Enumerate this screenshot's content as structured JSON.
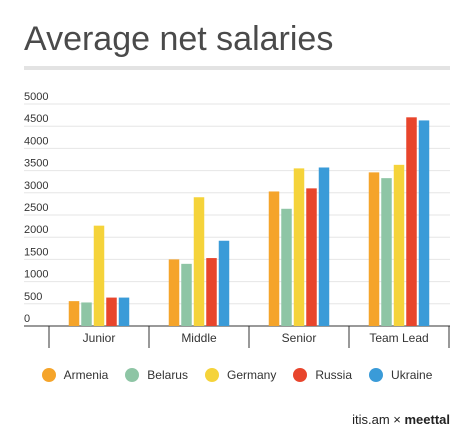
{
  "chart_data": {
    "type": "bar",
    "title": "Average net salaries",
    "categories": [
      "Junior",
      "Middle",
      "Senior",
      "Team Lead"
    ],
    "yticks": [
      "5000",
      "4500",
      "4000",
      "3500",
      "3000",
      "2500",
      "2000",
      "1500",
      "1000",
      "500",
      "0"
    ],
    "ylim": [
      0,
      5000
    ],
    "legend_position": "bottom",
    "series": [
      {
        "name": "Armenia",
        "color": "#f5a42a",
        "values": [
          560,
          1500,
          3030,
          3460
        ]
      },
      {
        "name": "Belarus",
        "color": "#8ec5a5",
        "values": [
          530,
          1400,
          2640,
          3330
        ]
      },
      {
        "name": "Germany",
        "color": "#f5d33a",
        "values": [
          2260,
          2900,
          3550,
          3630
        ]
      },
      {
        "name": "Russia",
        "color": "#e8452c",
        "values": [
          640,
          1530,
          3100,
          4700
        ]
      },
      {
        "name": "Ukraine",
        "color": "#3a9bd8",
        "values": [
          640,
          1920,
          3570,
          4630
        ]
      }
    ]
  },
  "credit": {
    "part1": "itis.am × ",
    "part2": "meettal"
  }
}
